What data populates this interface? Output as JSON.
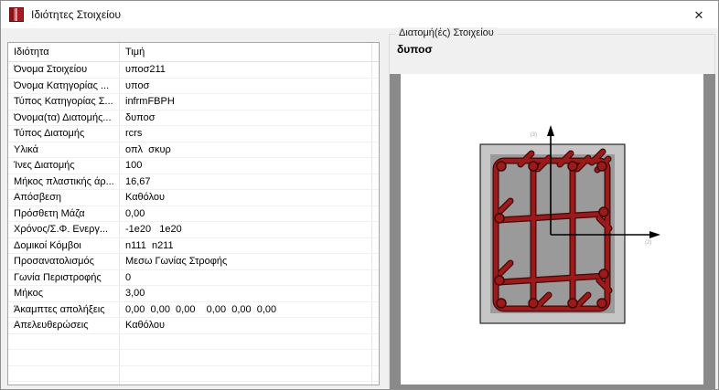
{
  "window": {
    "title": "Ιδιότητες Στοιχείου",
    "close_label": "✕"
  },
  "table": {
    "headers": {
      "property": "Ιδιότητα",
      "value": "Τιμή"
    },
    "rows": [
      {
        "property": "Όνομα Στοιχείου",
        "value": "υποσ211"
      },
      {
        "property": "Όνομα Κατηγορίας ...",
        "value": "υποσ"
      },
      {
        "property": "Τύπος Κατηγορίας Σ...",
        "value": "infrmFBPH"
      },
      {
        "property": "Όνομα(τα) Διατομής...",
        "value": "δυποσ"
      },
      {
        "property": "Τύπος Διατομής",
        "value": "rcrs"
      },
      {
        "property": "Υλικά",
        "value": "οπλ  σκυρ"
      },
      {
        "property": "Ίνες Διατομής",
        "value": "100"
      },
      {
        "property": "Μήκος πλαστικής άρ...",
        "value": "16,67"
      },
      {
        "property": "Απόσβεση",
        "value": "Καθόλου"
      },
      {
        "property": "Πρόσθετη Μάζα",
        "value": "0,00"
      },
      {
        "property": "Χρόνος/Σ.Φ. Ενεργ...",
        "value": "-1e20   1e20"
      },
      {
        "property": "Δομικοί Κόμβοι",
        "value": "n111  n211"
      },
      {
        "property": "Προσανατολισμός",
        "value": "Μεσω Γωνίας Στροφής"
      },
      {
        "property": "Γωνία Περιστροφής",
        "value": "0"
      },
      {
        "property": "Μήκος",
        "value": "3,00"
      },
      {
        "property": "Άκαμπτες απολήξεις",
        "value": "0,00  0,00  0,00    0,00  0,00  0,00"
      },
      {
        "property": "Απελευθερώσεις",
        "value": "Καθόλου"
      }
    ],
    "empty_row_count": 4
  },
  "section_panel": {
    "group_title": "Διατομή(ές) Στοιχείου",
    "section_name": "δυποσ",
    "axis_vertical_label": "(3)",
    "axis_horizontal_label": "(2)",
    "colors": {
      "rebar": "#9b1b1b",
      "rebar_dark": "#450707",
      "concrete": "#c6c6c6",
      "core": "#9a9a9a",
      "canvas_margin": "#8a8a8a"
    }
  }
}
